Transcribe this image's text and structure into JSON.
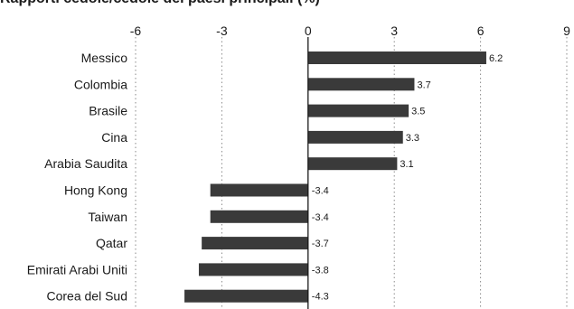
{
  "chart_data": {
    "type": "bar",
    "orientation": "horizontal",
    "title": "Rapporti cedole/cedole dei paesi principali (%)",
    "categories": [
      "Messico",
      "Colombia",
      "Brasile",
      "Cina",
      "Arabia Saudita",
      "Hong Kong",
      "Taiwan",
      "Qatar",
      "Emirati Arabi Uniti",
      "Corea del Sud"
    ],
    "values": [
      6.2,
      3.7,
      3.5,
      3.3,
      3.1,
      -3.4,
      -3.4,
      -3.7,
      -3.8,
      -4.3
    ],
    "value_labels": [
      "6.2",
      "3.7",
      "3.5",
      "3.3",
      "3.1",
      "-3.4",
      "-3.4",
      "-3.7",
      "-3.8",
      "-4.3"
    ],
    "xlim": [
      -6,
      9
    ],
    "xticks": [
      -6,
      -3,
      0,
      3,
      6,
      9
    ],
    "xtick_labels": [
      "-6",
      "-3",
      "0",
      "3",
      "6",
      "9"
    ],
    "grid": "vertical dotted",
    "bar_color": "#3a3a3a",
    "axis_color": "#1a1a1a",
    "grid_color": "#8a8a8a"
  }
}
